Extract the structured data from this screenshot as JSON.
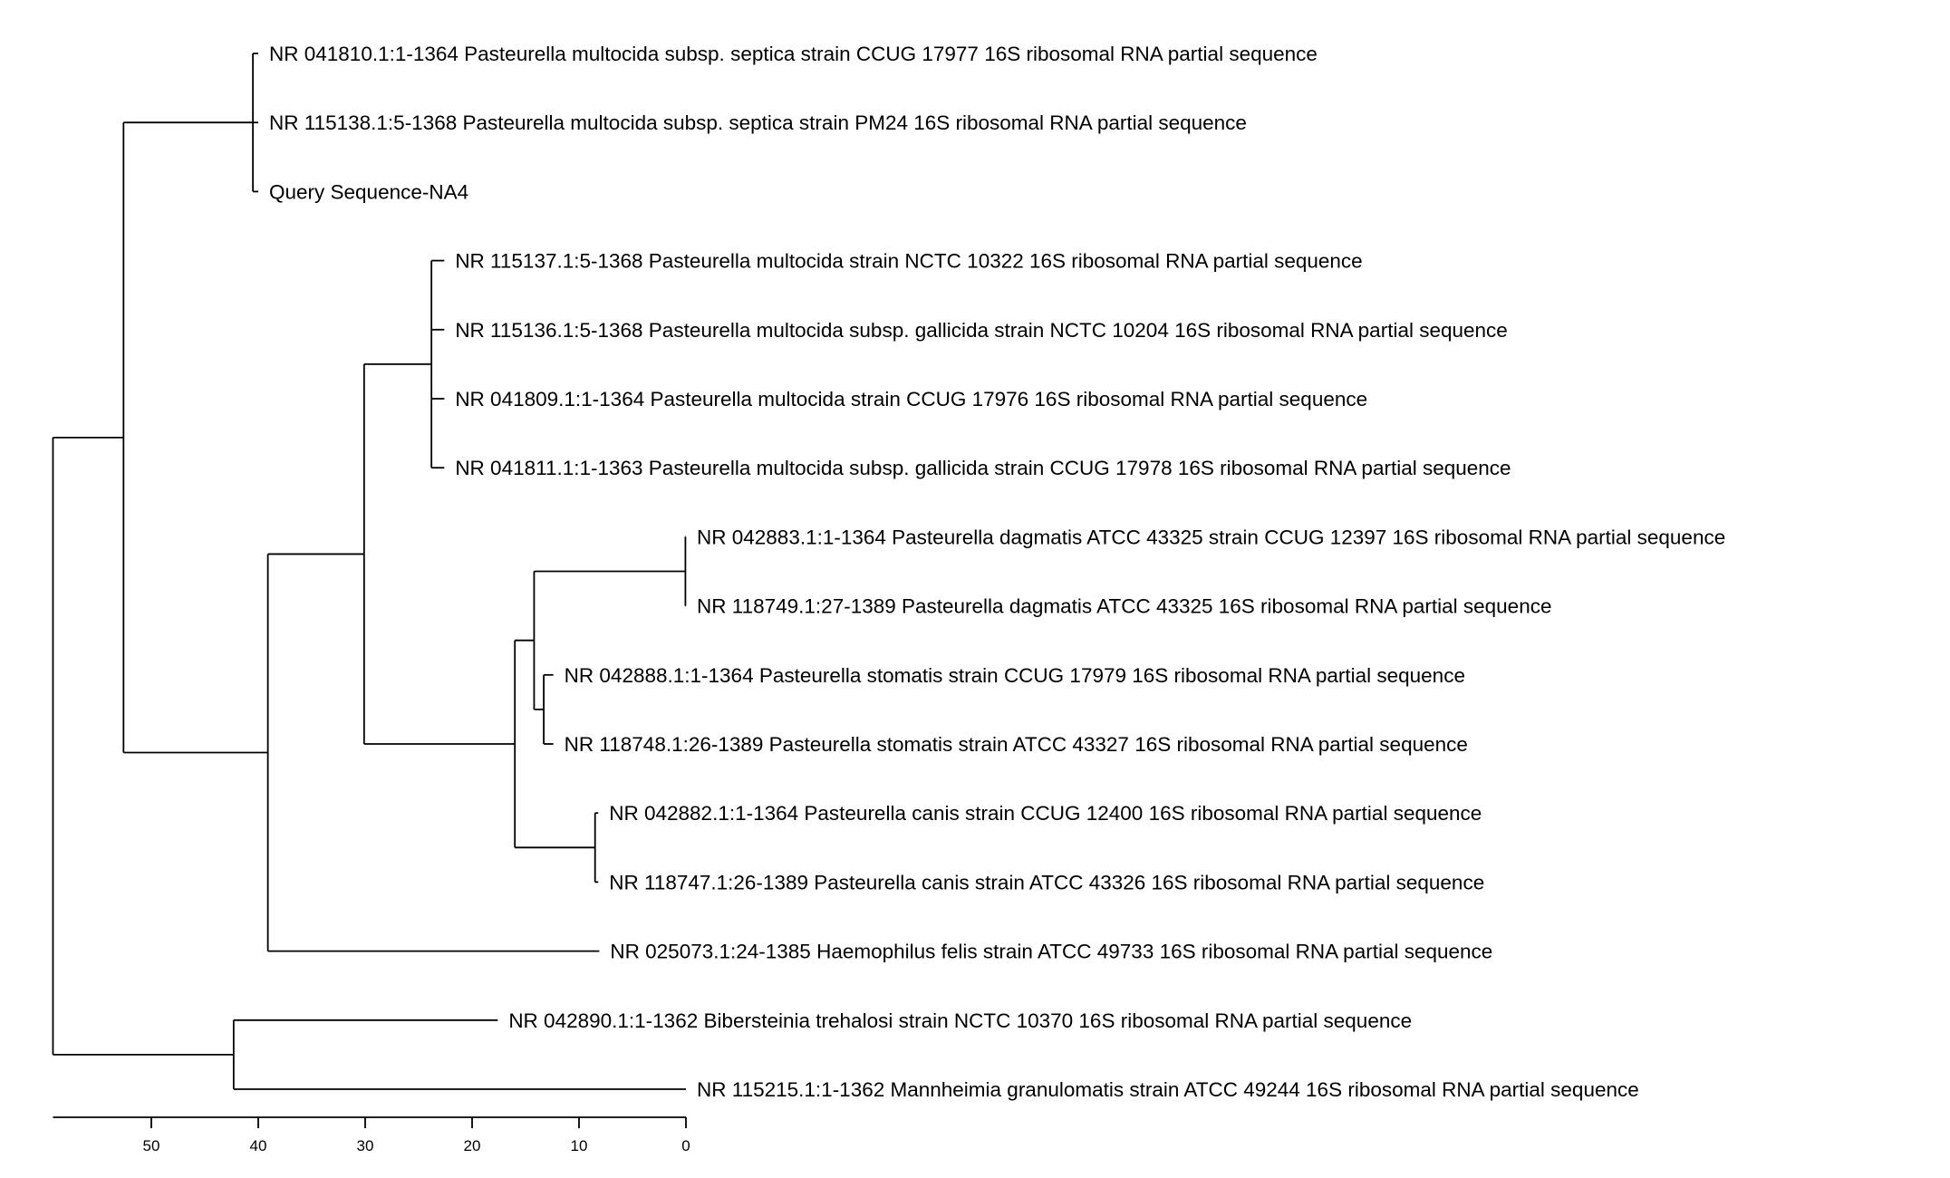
{
  "tree": {
    "scale": {
      "ticks": [
        50,
        40,
        30,
        20,
        10,
        0
      ]
    },
    "root": {
      "height": 59.2,
      "children": [
        {
          "height": 52.6,
          "children": [
            {
              "height": 40.5,
              "children": [
                {
                  "label": "NR 041810.1:1-1364 Pasteurella multocida subsp. septica strain CCUG 17977 16S ribosomal RNA partial sequence",
                  "height": 40.0
                },
                {
                  "label": "NR 115138.1:5-1368 Pasteurella multocida subsp. septica strain PM24 16S ribosomal RNA partial sequence",
                  "height": 40.0
                },
                {
                  "label": "Query Sequence-NA4",
                  "height": 40.0
                }
              ]
            },
            {
              "height": 39.1,
              "children": [
                {
                  "height": 30.1,
                  "children": [
                    {
                      "height": 23.8,
                      "children": [
                        {
                          "label": "NR 115137.1:5-1368 Pasteurella multocida strain NCTC 10322 16S ribosomal RNA partial sequence",
                          "height": 22.6
                        },
                        {
                          "label": "NR 115136.1:5-1368 Pasteurella multocida subsp. gallicida strain NCTC 10204 16S ribosomal RNA partial sequence",
                          "height": 22.6
                        },
                        {
                          "label": "NR 041809.1:1-1364 Pasteurella multocida strain CCUG 17976 16S ribosomal RNA partial sequence",
                          "height": 22.6
                        },
                        {
                          "label": "NR 041811.1:1-1363 Pasteurella multocida subsp. gallicida strain CCUG 17978 16S ribosomal RNA partial sequence",
                          "height": 22.6
                        }
                      ]
                    },
                    {
                      "height": 16.0,
                      "children": [
                        {
                          "height": 14.2,
                          "children": [
                            {
                              "height": 0.05,
                              "children": [
                                {
                                  "label": "NR 042883.1:1-1364 Pasteurella dagmatis ATCC 43325 strain CCUG 12397 16S ribosomal RNA partial sequence",
                                  "height": 0.0
                                },
                                {
                                  "label": "NR 118749.1:27-1389 Pasteurella dagmatis ATCC 43325 16S ribosomal RNA partial sequence",
                                  "height": 0.0
                                }
                              ]
                            },
                            {
                              "height": 13.3,
                              "children": [
                                {
                                  "label": "NR 042888.1:1-1364 Pasteurella stomatis strain CCUG 17979 16S ribosomal RNA partial sequence",
                                  "height": 12.4
                                },
                                {
                                  "label": "NR 118748.1:26-1389 Pasteurella stomatis strain ATCC 43327 16S ribosomal RNA partial sequence",
                                  "height": 12.4
                                }
                              ]
                            }
                          ]
                        },
                        {
                          "height": 8.5,
                          "children": [
                            {
                              "label": "NR 042882.1:1-1364 Pasteurella canis strain CCUG 12400 16S ribosomal RNA partial sequence",
                              "height": 8.2
                            },
                            {
                              "label": "NR 118747.1:26-1389 Pasteurella canis strain ATCC 43326 16S ribosomal RNA partial sequence",
                              "height": 8.2
                            }
                          ]
                        }
                      ]
                    }
                  ]
                },
                {
                  "label": "NR 025073.1:24-1385 Haemophilus felis strain ATCC 49733 16S ribosomal RNA partial sequence",
                  "height": 8.1
                }
              ]
            }
          ]
        },
        {
          "height": 42.3,
          "children": [
            {
              "label": "NR 042890.1:1-1362 Bibersteinia trehalosi strain NCTC 10370 16S ribosomal RNA partial sequence",
              "height": 17.6
            },
            {
              "label": "NR 115215.1:1-1362 Mannheimia granulomatis strain ATCC 49244 16S ribosomal RNA partial sequence",
              "height": 0.0
            }
          ]
        }
      ]
    }
  }
}
